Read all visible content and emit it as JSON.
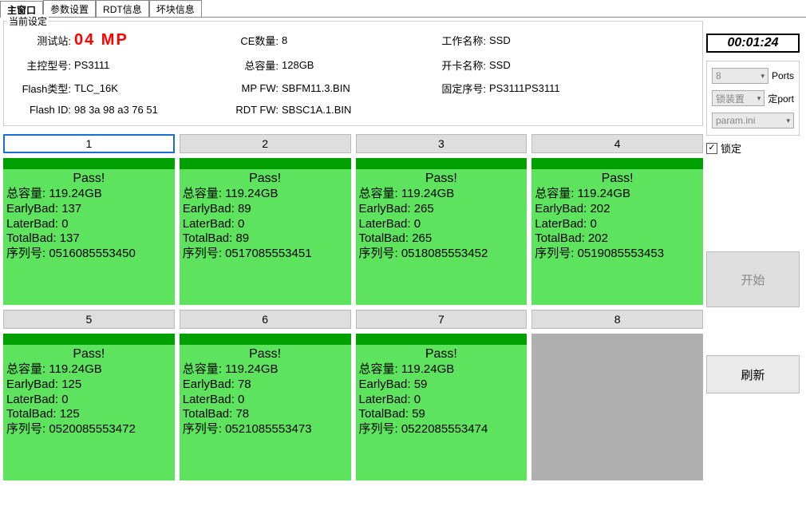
{
  "tabs": {
    "items": [
      "主窗口",
      "参数设置",
      "RDT信息",
      "坏块信息"
    ],
    "active_index": 0
  },
  "settings": {
    "panel_title": "当前设定",
    "rows": [
      {
        "label": "测试站:",
        "value": "04  MP",
        "is_station": true
      },
      {
        "label": "CE数量:",
        "value": "8"
      },
      {
        "label": "工作名称:",
        "value": "SSD"
      },
      {
        "label": "主控型号:",
        "value": "PS3111"
      },
      {
        "label": "总容量:",
        "value": "128GB"
      },
      {
        "label": "开卡名称:",
        "value": "SSD"
      },
      {
        "label": "Flash类型:",
        "value": "TLC_16K"
      },
      {
        "label": "MP FW:",
        "value": "SBFM11.3.BIN"
      },
      {
        "label": "固定序号:",
        "value": "PS3111PS3111"
      },
      {
        "label": "Flash ID:",
        "value": "98 3a 98 a3 76 51"
      },
      {
        "label": "RDT FW:",
        "value": "SBSC1A.1.BIN"
      }
    ]
  },
  "ports": [
    {
      "num": "1",
      "selected": true,
      "status": "Pass!",
      "capacity": "119.24GB",
      "earlybad": "137",
      "laterbad": "0",
      "totalbad": "137",
      "serial": "0516085553450",
      "empty": false
    },
    {
      "num": "2",
      "selected": false,
      "status": "Pass!",
      "capacity": "119.24GB",
      "earlybad": "89",
      "laterbad": "0",
      "totalbad": "89",
      "serial": "0517085553451",
      "empty": false
    },
    {
      "num": "3",
      "selected": false,
      "status": "Pass!",
      "capacity": "119.24GB",
      "earlybad": "265",
      "laterbad": "0",
      "totalbad": "265",
      "serial": "0518085553452",
      "empty": false
    },
    {
      "num": "4",
      "selected": false,
      "status": "Pass!",
      "capacity": "119.24GB",
      "earlybad": "202",
      "laterbad": "0",
      "totalbad": "202",
      "serial": "0519085553453",
      "empty": false
    },
    {
      "num": "5",
      "selected": false,
      "status": "Pass!",
      "capacity": "119.24GB",
      "earlybad": "125",
      "laterbad": "0",
      "totalbad": "125",
      "serial": "0520085553472",
      "empty": false
    },
    {
      "num": "6",
      "selected": false,
      "status": "Pass!",
      "capacity": "119.24GB",
      "earlybad": "78",
      "laterbad": "0",
      "totalbad": "78",
      "serial": "0521085553473",
      "empty": false
    },
    {
      "num": "7",
      "selected": false,
      "status": "Pass!",
      "capacity": "119.24GB",
      "earlybad": "59",
      "laterbad": "0",
      "totalbad": "59",
      "serial": "0522085553474",
      "empty": false
    },
    {
      "num": "8",
      "selected": false,
      "status": "",
      "capacity": "",
      "earlybad": "",
      "laterbad": "",
      "totalbad": "",
      "serial": "",
      "empty": true
    }
  ],
  "port_labels": {
    "capacity": "总容量: ",
    "earlybad": "EarlyBad: ",
    "laterbad": "LaterBad: ",
    "totalbad": "TotalBad: ",
    "serial": "序列号: "
  },
  "side": {
    "timer": "00:01:24",
    "ports_select": "8",
    "ports_label": "Ports",
    "lock_select": "锁装置",
    "lock_label": "定port",
    "param_select": "param.ini",
    "lock_checkbox_label": "锁定",
    "lock_checked": true,
    "start_button": "开始",
    "refresh_button": "刷新"
  },
  "colors": {
    "pass_bar": "#00a000",
    "pass_body": "#5de35d",
    "empty_body": "#b0b0b0",
    "header_bg": "#dedede",
    "selected_border": "#1a6fd6",
    "station_color": "#ff0000"
  }
}
